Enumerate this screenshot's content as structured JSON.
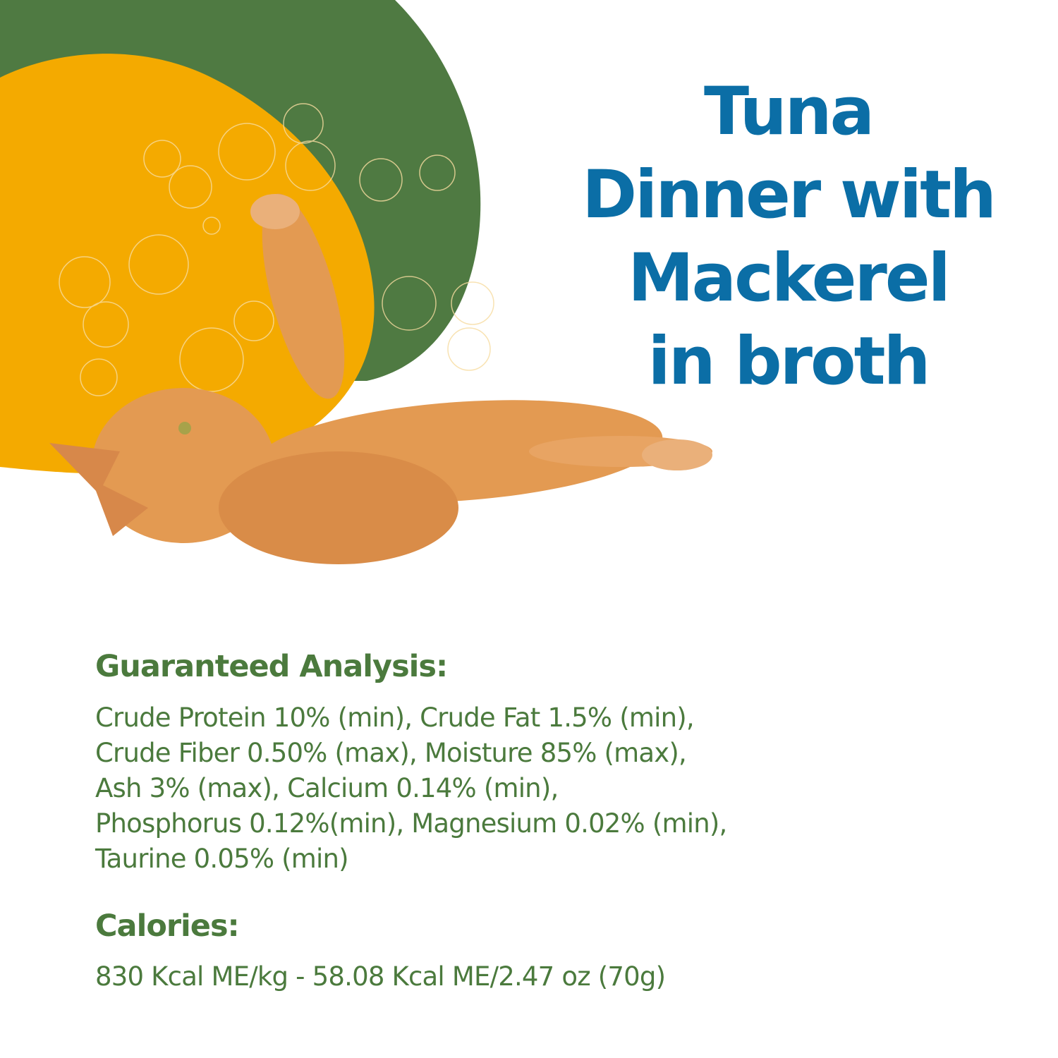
{
  "colors": {
    "title": "#0b6ea6",
    "text": "#4b7a3d",
    "green_shape": "#4f7a42",
    "yellow_shape": "#f4aa00",
    "cat": "#e39a52"
  },
  "image": {
    "subject": "orange-tabby-cat-icon",
    "decoration": "line-art-flowers-and-cats"
  },
  "title": {
    "lines": [
      "Tuna",
      "Dinner with",
      "Mackerel",
      "in broth"
    ]
  },
  "analysis": {
    "heading": "Guaranteed Analysis:",
    "lines": [
      "Crude Protein 10% (min), Crude Fat 1.5% (min),",
      "Crude Fiber 0.50% (max), Moisture 85% (max),",
      "Ash 3% (max), Calcium 0.14% (min),",
      "Phosphorus 0.12%(min), Magnesium 0.02% (min),",
      "Taurine 0.05% (min)"
    ]
  },
  "calories": {
    "heading": "Calories:",
    "value": "830 Kcal ME/kg - 58.08 Kcal ME/2.47 oz (70g)"
  }
}
